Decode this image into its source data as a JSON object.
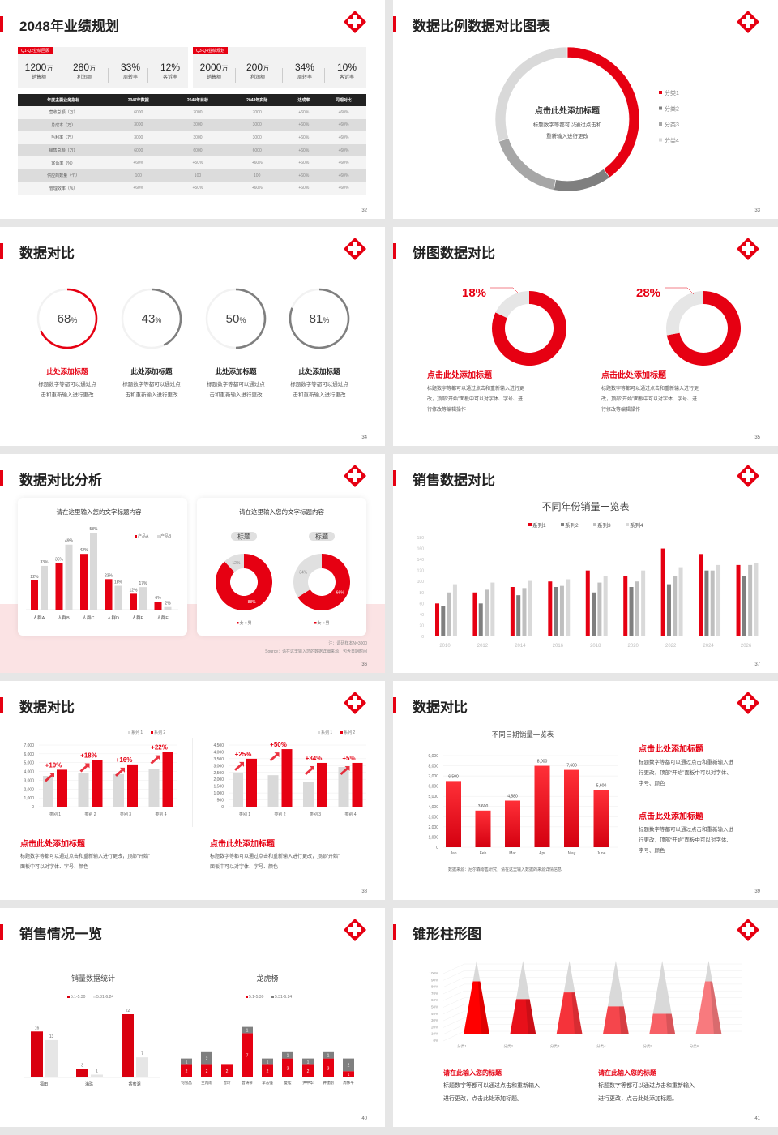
{
  "colors": {
    "accent": "#e60012",
    "dark": "#222222",
    "gray": "#7f7f7f",
    "light": "#d9d9d9"
  },
  "logo_icon": "red-cross-logo-icon",
  "slides": [
    {
      "page": "32",
      "title": "2048年业绩规划",
      "kpi_groups": [
        {
          "tag": "Q1-Q2业绩回顾",
          "items": [
            {
              "value": "1200",
              "unit": "万",
              "label": "销售额"
            },
            {
              "value": "280",
              "unit": "万",
              "label": "利润额"
            },
            {
              "value": "33%",
              "unit": "",
              "label": "周转率"
            },
            {
              "value": "12%",
              "unit": "",
              "label": "客诉率"
            }
          ]
        },
        {
          "tag": "Q3-Q4业绩规划",
          "items": [
            {
              "value": "2000",
              "unit": "万",
              "label": "销售额"
            },
            {
              "value": "200",
              "unit": "万",
              "label": "利润额"
            },
            {
              "value": "34%",
              "unit": "",
              "label": "周转率"
            },
            {
              "value": "10%",
              "unit": "",
              "label": "客诉率"
            }
          ]
        }
      ],
      "table": {
        "headers": [
          "年度主要业务指标",
          "2047年数据",
          "2048年目标",
          "2048年实际",
          "达成率",
          "同期对比"
        ],
        "rows": [
          [
            "营收总额（万）",
            "6000",
            "7000",
            "7000",
            "+60%",
            "+60%"
          ],
          [
            "总成本（万）",
            "3000",
            "3000",
            "3000",
            "+60%",
            "+60%"
          ],
          [
            "毛利率（万）",
            "3000",
            "3000",
            "3000",
            "+60%",
            "+60%"
          ],
          [
            "销售总额（万）",
            "6000",
            "6000",
            "6000",
            "+60%",
            "+60%"
          ],
          [
            "客诉率（%）",
            "+60%",
            "+50%",
            "+60%",
            "+60%",
            "+60%"
          ],
          [
            "供应商数量（个）",
            "100",
            "100",
            "100",
            "+60%",
            "+60%"
          ],
          [
            "管理效率（%）",
            "+60%",
            "+50%",
            "+60%",
            "+60%",
            "+60%"
          ]
        ]
      }
    },
    {
      "page": "33",
      "title": "数据比例数据对比图表",
      "center_title": "点击此处添加标题",
      "center_desc": [
        "标题数字等都可以通过点击和",
        "重新输入进行更改"
      ],
      "chart_data": {
        "type": "pie",
        "categories": [
          "分类1",
          "分类2",
          "分类3",
          "分类4"
        ],
        "values": [
          40,
          13,
          17,
          30
        ],
        "colors": [
          "#e60012",
          "#7f7f7f",
          "#a6a6a6",
          "#d9d9d9"
        ],
        "legend": "right"
      }
    },
    {
      "page": "34",
      "title": "数据对比",
      "rings": [
        {
          "value": 68,
          "title": "此处添加标题",
          "color": "#e60012",
          "desc": [
            "标题数字等都可以通过点",
            "击和重新输入进行更改"
          ]
        },
        {
          "value": 43,
          "title": "此处添加标题",
          "color": "#7f7f7f",
          "desc": [
            "标题数字等都可以通过点",
            "击和重新输入进行更改"
          ]
        },
        {
          "value": 50,
          "title": "此处添加标题",
          "color": "#7f7f7f",
          "desc": [
            "标题数字等都可以通过点",
            "击和重新输入进行更改"
          ]
        },
        {
          "value": 81,
          "title": "此处添加标题",
          "color": "#7f7f7f",
          "desc": [
            "标题数字等都可以通过点",
            "击和重新输入进行更改"
          ]
        }
      ],
      "unit": "%"
    },
    {
      "page": "35",
      "title": "饼图数据对比",
      "pies": [
        {
          "value": 18,
          "label": "18%",
          "title": "点击此处添加标题",
          "desc": [
            "标题数字等都可以通过点击和重新输入进行更",
            "改，顶部“开始”面板中可以对字体、字号、进",
            "行修改等编辑操作"
          ]
        },
        {
          "value": 28,
          "label": "28%",
          "title": "点击此处添加标题",
          "desc": [
            "标题数字等都可以通过点击和重新输入进行更",
            "改，顶部“开始”面板中可以对字体、字号、进",
            "行修改等编辑操作"
          ]
        }
      ]
    },
    {
      "page": "36",
      "title": "数据对比分析",
      "card_titles": [
        "请在这里输入您的文字标题内容",
        "请在这里输入您的文字标题内容"
      ],
      "chart_data": [
        {
          "type": "bar",
          "categories": [
            "人群A",
            "人群B",
            "人群C",
            "人群D",
            "人群E",
            "人群F"
          ],
          "series": [
            {
              "name": "产品A",
              "values": [
                22,
                35,
                42,
                23,
                12,
                6
              ]
            },
            {
              "name": "产品B",
              "values": [
                33,
                49,
                58,
                18,
                17,
                2
              ]
            }
          ],
          "legend": "top-right",
          "unit": "%"
        },
        {
          "type": "pie",
          "label": "标题",
          "categories": [
            "女",
            "男"
          ],
          "values": [
            88,
            12
          ]
        },
        {
          "type": "pie",
          "label": "标题",
          "categories": [
            "女",
            "男"
          ],
          "values": [
            66,
            34
          ]
        }
      ],
      "note": "注：调研样本N=3000",
      "source": "Source：请在这里输入您的数据详细来源，包含日期时间"
    },
    {
      "page": "37",
      "title": "销售数据对比",
      "chart_data": {
        "type": "bar",
        "title": "不同年份销量一览表",
        "categories": [
          "2010",
          "2012",
          "2014",
          "2016",
          "2018",
          "2020",
          "2022",
          "2024",
          "2026"
        ],
        "series": [
          {
            "name": "系列1",
            "values": [
              60,
              80,
              90,
              100,
              120,
              110,
              160,
              150,
              130
            ]
          },
          {
            "name": "系列2",
            "values": [
              55,
              60,
              75,
              90,
              80,
              90,
              95,
              120,
              110
            ]
          },
          {
            "name": "系列3",
            "values": [
              80,
              85,
              88,
              92,
              98,
              100,
              110,
              120,
              130
            ]
          },
          {
            "name": "系列4",
            "values": [
              95,
              98,
              101,
              104,
              110,
              120,
              126,
              130,
              134
            ]
          }
        ],
        "colors": [
          "#e60012",
          "#7f7f7f",
          "#bfbfbf",
          "#d9d9d9"
        ],
        "ylim": [
          0,
          180
        ],
        "yticks": [
          0,
          20,
          40,
          60,
          80,
          100,
          120,
          140,
          160,
          180
        ],
        "legend": "top",
        "grid": false
      }
    },
    {
      "page": "38",
      "title": "数据对比",
      "chart_data": [
        {
          "type": "bar",
          "categories": [
            "类别 1",
            "类别 2",
            "类别 3",
            "类别 4"
          ],
          "series": [
            {
              "name": "系列 1",
              "values": [
                3500,
                3800,
                3700,
                4300
              ]
            },
            {
              "name": "系列 2",
              "values": [
                4200,
                5300,
                4800,
                6200
              ]
            }
          ],
          "annotations": [
            "+10%",
            "+18%",
            "+16%",
            "+22%"
          ],
          "ylim": [
            0,
            7000
          ],
          "yticks": [
            "0",
            "1,000",
            "2,000",
            "3,000",
            "4,000",
            "5,000",
            "6,000",
            "7,000"
          ],
          "legend": "top-right"
        },
        {
          "type": "bar",
          "categories": [
            "类别 1",
            "类别 2",
            "类别 3",
            "类别 4"
          ],
          "series": [
            {
              "name": "系列 1",
              "values": [
                2500,
                2300,
                1800,
                2900
              ]
            },
            {
              "name": "系列 2",
              "values": [
                3500,
                4200,
                3200,
                3200
              ]
            }
          ],
          "annotations": [
            "+25%",
            "+50%",
            "+34%",
            "+5%"
          ],
          "ylim": [
            0,
            4500
          ],
          "yticks": [
            "0",
            "500",
            "1,000",
            "1,500",
            "2,000",
            "2,500",
            "3,000",
            "3,500",
            "4,000",
            "4,500"
          ],
          "legend": "top-right"
        }
      ],
      "blocks": [
        {
          "title": "点击此处添加标题",
          "desc": [
            "标题数字等都可以通过点击和重新输入进行更改，顶部“开始”",
            "面板中可以对字体、字号、颜色"
          ]
        },
        {
          "title": "点击此处添加标题",
          "desc": [
            "标题数字等都可以通过点击和重新输入进行更改，顶部“开始”",
            "面板中可以对字体、字号、颜色"
          ]
        }
      ]
    },
    {
      "page": "39",
      "title": "数据对比",
      "chart_data": {
        "type": "bar",
        "title": "不同日期销量一览表",
        "categories": [
          "Jan",
          "Feb",
          "Mar",
          "Apr",
          "May",
          "June"
        ],
        "values": [
          6500,
          3600,
          4580,
          8000,
          7600,
          5600
        ],
        "labels": [
          "6,500",
          "3,600",
          "4,580",
          "8,000",
          "7,600",
          "5,600"
        ],
        "ylim": [
          0,
          9000
        ],
        "yticks": [
          "0",
          "1,000",
          "2,000",
          "3,000",
          "4,000",
          "5,000",
          "6,000",
          "7,000",
          "8,000",
          "9,000"
        ],
        "grid": true
      },
      "source": "数据来源：尼尔森零售研究，请在这里输入数据的来源详情信息",
      "blocks": [
        {
          "title": "点击此处添加标题",
          "desc": [
            "标题数字等都可以通过点击和重新输入进",
            "行更改，顶部“开始”面板中可以对字体、",
            "字号、颜色"
          ]
        },
        {
          "title": "点击此处添加标题",
          "desc": [
            "标题数字等都可以通过点击和重新输入进",
            "行更改，顶部“开始”面板中可以对字体、",
            "字号、颜色"
          ]
        }
      ]
    },
    {
      "page": "40",
      "title": "销售情况一览",
      "chart_data": [
        {
          "type": "bar",
          "title": "销量数据统计",
          "categories": [
            "福田",
            "海珠",
            "香蜜湖"
          ],
          "series": [
            {
              "name": "5.1-5.30",
              "values": [
                16,
                3,
                22
              ]
            },
            {
              "name": "5.31-6.24",
              "values": [
                13,
                1,
                7
              ]
            }
          ],
          "legend": "top"
        },
        {
          "type": "bar",
          "stacked": true,
          "title": "龙虎榜",
          "categories": [
            "何雪晶",
            "兰丙雨",
            "曾玲",
            "曾涛琴",
            "李志强",
            "夏松",
            "尹中华",
            "钟建刚",
            "周伟平"
          ],
          "series": [
            {
              "name": "5.1-5.30",
              "values": [
                2,
                2,
                2,
                7,
                2,
                3,
                2,
                3,
                1
              ]
            },
            {
              "name": "5.31-6.24",
              "values": [
                1,
                2,
                0,
                1,
                1,
                1,
                1,
                1,
                2
              ]
            }
          ],
          "legend": "top"
        }
      ]
    },
    {
      "page": "41",
      "title": "锥形柱形图",
      "chart_data": {
        "type": "bar",
        "shape": "3d-pyramid",
        "categories": [
          "分类1",
          "分类2",
          "分类3",
          "分类4",
          "分类5",
          "分类6"
        ],
        "values": [
          72,
          48,
          57,
          38,
          28,
          72
        ],
        "ylim": [
          0,
          100
        ],
        "yticks": [
          "0%",
          "10%",
          "20%",
          "30%",
          "40%",
          "50%",
          "60%",
          "70%",
          "80%",
          "90%",
          "100%"
        ]
      },
      "blocks": [
        {
          "title": "请在此输入您的标题",
          "desc": [
            "标题数字等都可以通过点击和重新输入",
            "进行更改，点击此处添加标题。"
          ]
        },
        {
          "title": "请在此输入您的标题",
          "desc": [
            "标题数字等都可以通过点击和重新输入",
            "进行更改，点击此处添加标题。"
          ]
        }
      ]
    }
  ]
}
